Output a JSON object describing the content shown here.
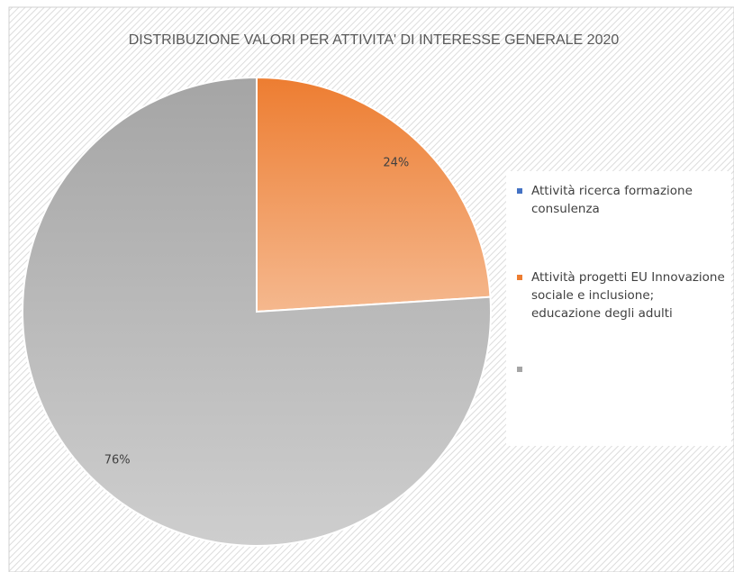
{
  "chart_data": {
    "type": "pie",
    "title": "DISTRIBUZIONE VALORI PER ATTIVITA' DI INTERESSE GENERALE 2020",
    "categories": [
      "Attività ricerca formazione consulenza",
      "Attività progetti EU Innovazione sociale e inclusione; educazione degli adulti",
      null
    ],
    "values": [
      0,
      24,
      76
    ],
    "value_labels": [
      null,
      "24%",
      "76%"
    ],
    "colors": [
      "#4472c4",
      "#ed7d31",
      "#a5a5a5"
    ],
    "legend": "right"
  }
}
